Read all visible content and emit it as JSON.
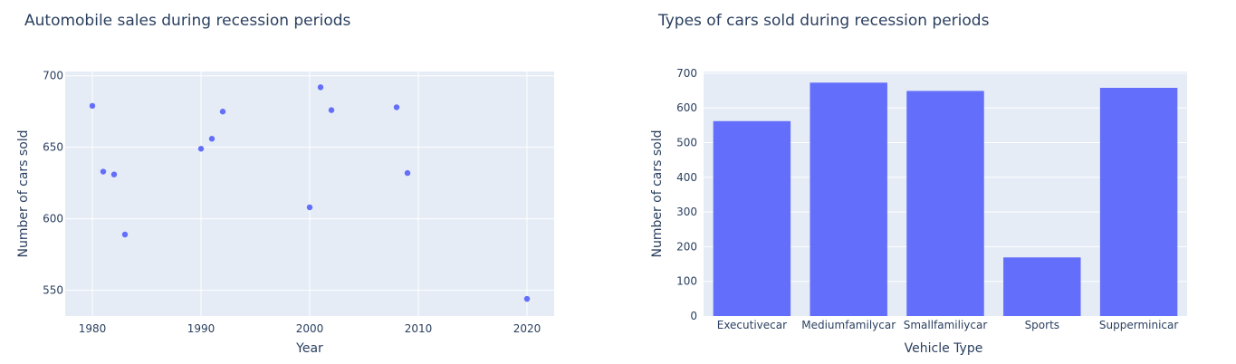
{
  "chart_data": [
    {
      "type": "scatter",
      "title": "Automobile sales during recession periods",
      "xlabel": "Year",
      "ylabel": "Number of cars sold",
      "xlim": [
        1977.5,
        2022.5
      ],
      "ylim": [
        532,
        703
      ],
      "xticks": [
        1980,
        1990,
        2000,
        2010,
        2020
      ],
      "yticks": [
        550,
        600,
        650,
        700
      ],
      "grid": true,
      "color": "#636efa",
      "points": [
        {
          "x": 1980,
          "y": 679
        },
        {
          "x": 1981,
          "y": 633
        },
        {
          "x": 1982,
          "y": 631
        },
        {
          "x": 1983,
          "y": 589
        },
        {
          "x": 1990,
          "y": 649
        },
        {
          "x": 1991,
          "y": 656
        },
        {
          "x": 1992,
          "y": 675
        },
        {
          "x": 2000,
          "y": 608
        },
        {
          "x": 2001,
          "y": 692
        },
        {
          "x": 2002,
          "y": 676
        },
        {
          "x": 2008,
          "y": 678
        },
        {
          "x": 2009,
          "y": 632
        },
        {
          "x": 2020,
          "y": 544
        }
      ]
    },
    {
      "type": "bar",
      "title": "Types of cars sold during recession periods",
      "xlabel": "Vehicle Type",
      "ylabel": "Number of cars sold",
      "ylim": [
        0,
        705
      ],
      "yticks": [
        0,
        100,
        200,
        300,
        400,
        500,
        600,
        700
      ],
      "grid": true,
      "color": "#636efa",
      "categories": [
        "Executivecar",
        "Mediumfamilycar",
        "Smallfamiliycar",
        "Sports",
        "Supperminicar"
      ],
      "values": [
        562,
        673,
        649,
        169,
        658
      ]
    }
  ]
}
